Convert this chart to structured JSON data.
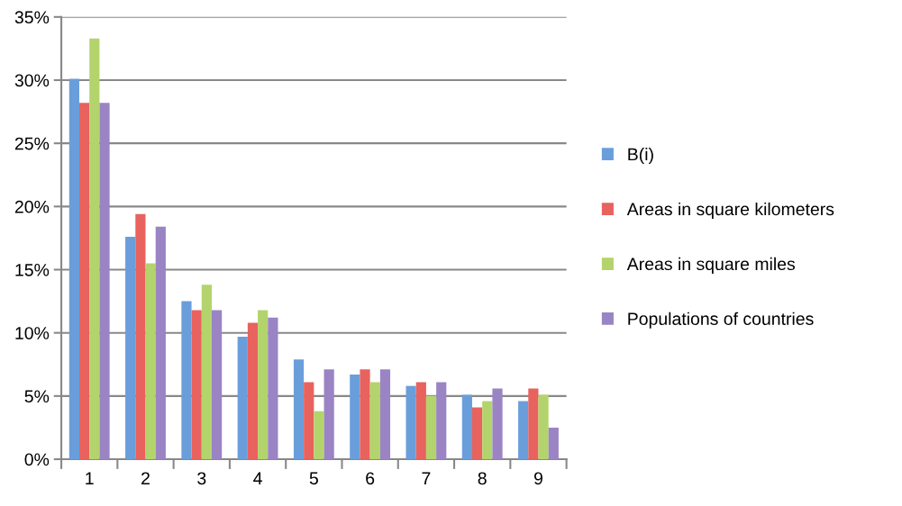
{
  "chart_data": {
    "type": "bar",
    "categories": [
      "1",
      "2",
      "3",
      "4",
      "5",
      "6",
      "7",
      "8",
      "9"
    ],
    "series": [
      {
        "name": "B(i)",
        "color": "#6a9edb",
        "values": [
          30.1,
          17.6,
          12.5,
          9.7,
          7.9,
          6.7,
          5.8,
          5.1,
          4.6
        ]
      },
      {
        "name": "Areas in square kilometers",
        "color": "#e8625e",
        "values": [
          28.2,
          19.4,
          11.8,
          10.8,
          6.1,
          7.1,
          6.1,
          4.1,
          5.6
        ]
      },
      {
        "name": "Areas in square miles",
        "color": "#b3d46c",
        "values": [
          33.3,
          15.5,
          13.8,
          11.8,
          3.8,
          6.1,
          5.0,
          4.6,
          5.1
        ]
      },
      {
        "name": "Populations of countries",
        "color": "#9a84c4",
        "values": [
          28.2,
          18.4,
          11.8,
          11.2,
          7.1,
          7.1,
          6.1,
          5.6,
          2.5
        ]
      }
    ],
    "ylim": [
      0,
      35
    ],
    "yticks": [
      {
        "value": 0,
        "label": "0%"
      },
      {
        "value": 5,
        "label": "5%"
      },
      {
        "value": 10,
        "label": "10%"
      },
      {
        "value": 15,
        "label": "15%"
      },
      {
        "value": 20,
        "label": "20%"
      },
      {
        "value": 25,
        "label": "25%"
      },
      {
        "value": 30,
        "label": "30%"
      },
      {
        "value": 35,
        "label": "35%"
      }
    ],
    "grid": "y",
    "legend": "right"
  }
}
